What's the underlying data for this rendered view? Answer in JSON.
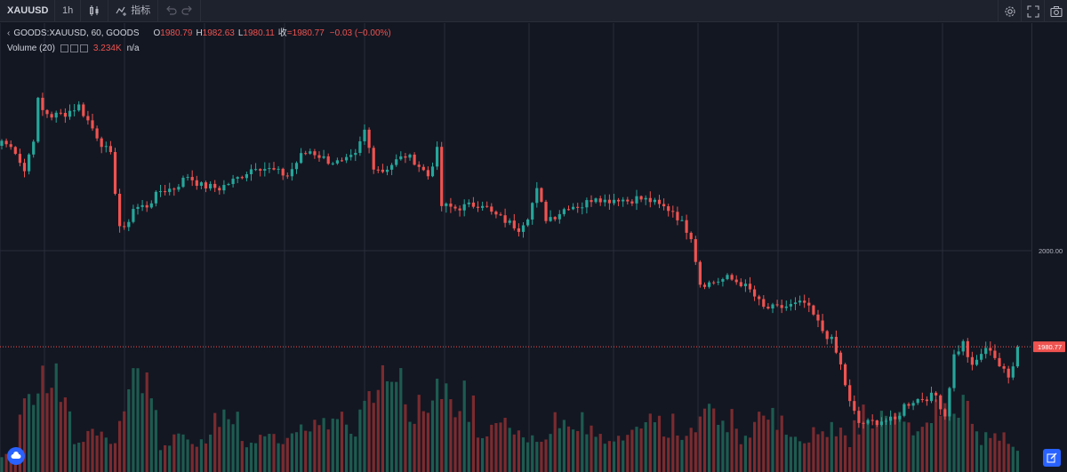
{
  "toolbar": {
    "symbol": "XAUUSD",
    "interval": "1h",
    "indicators_label": "指标",
    "icons": [
      "candles-icon",
      "indicators-icon",
      "undo-icon",
      "redo-icon",
      "settings-icon",
      "fullscreen-icon",
      "camera-icon"
    ]
  },
  "legend": {
    "symbol_line": "GOODS:XAUUSD, 60, GOODS",
    "open_key": "O",
    "open": "1980.79",
    "high_key": "H",
    "high": "1982.63",
    "low_key": "L",
    "low": "1980.11",
    "close_key": "收",
    "close": "=1980.77",
    "change": "−0.03 (−0.00%)",
    "volume_label": "Volume (20)",
    "volume_value": "3.234K",
    "volume_ma": "n/a"
  },
  "colors": {
    "up": "#26a69a",
    "down": "#ef5350",
    "up_volume": "#1d5b50",
    "down_volume": "#7a2b2f",
    "price_line": "#ef5350",
    "background": "#131722",
    "grid": "#2a2e39"
  },
  "chart_data": {
    "type": "candlestick",
    "symbol": "GOODS:XAUUSD",
    "interval": "60",
    "y_axis_labels": [
      "2000.00"
    ],
    "last_price_label": "1980.77",
    "ylim": [
      1960.5,
      2042.0
    ],
    "anchors": [
      {
        "i": 0,
        "p": 2022.0
      },
      {
        "i": 3,
        "p": 2020.0
      },
      {
        "i": 5,
        "p": 2016.0
      },
      {
        "i": 7,
        "p": 2022.5
      },
      {
        "i": 8,
        "p": 2030.0
      },
      {
        "i": 9,
        "p": 2028.0
      },
      {
        "i": 11,
        "p": 2027.0
      },
      {
        "i": 14,
        "p": 2027.5
      },
      {
        "i": 17,
        "p": 2029.0
      },
      {
        "i": 19,
        "p": 2026.0
      },
      {
        "i": 22,
        "p": 2021.5
      },
      {
        "i": 24,
        "p": 2019.0
      },
      {
        "i": 26,
        "p": 2005.0
      },
      {
        "i": 27,
        "p": 2004.0
      },
      {
        "i": 29,
        "p": 2008.5
      },
      {
        "i": 32,
        "p": 2009.0
      },
      {
        "i": 35,
        "p": 2012.0
      },
      {
        "i": 38,
        "p": 2012.5
      },
      {
        "i": 41,
        "p": 2015.0
      },
      {
        "i": 44,
        "p": 2013.0
      },
      {
        "i": 48,
        "p": 2012.5
      },
      {
        "i": 52,
        "p": 2014.5
      },
      {
        "i": 56,
        "p": 2017.0
      },
      {
        "i": 60,
        "p": 2016.0
      },
      {
        "i": 63,
        "p": 2015.0
      },
      {
        "i": 66,
        "p": 2019.0
      },
      {
        "i": 68,
        "p": 2020.0
      },
      {
        "i": 70,
        "p": 2019.0
      },
      {
        "i": 72,
        "p": 2018.0
      },
      {
        "i": 75,
        "p": 2017.5
      },
      {
        "i": 78,
        "p": 2019.0
      },
      {
        "i": 80,
        "p": 2024.0
      },
      {
        "i": 82,
        "p": 2017.0
      },
      {
        "i": 84,
        "p": 2016.0
      },
      {
        "i": 87,
        "p": 2018.0
      },
      {
        "i": 89,
        "p": 2019.0
      },
      {
        "i": 91,
        "p": 2018.0
      },
      {
        "i": 94,
        "p": 2015.0
      },
      {
        "i": 96,
        "p": 2020.0
      },
      {
        "i": 97,
        "p": 2009.0
      },
      {
        "i": 100,
        "p": 2008.5
      },
      {
        "i": 103,
        "p": 2009.0
      },
      {
        "i": 106,
        "p": 2009.5
      },
      {
        "i": 108,
        "p": 2007.5
      },
      {
        "i": 111,
        "p": 2006.0
      },
      {
        "i": 114,
        "p": 2004.5
      },
      {
        "i": 116,
        "p": 2007.0
      },
      {
        "i": 118,
        "p": 2012.0
      },
      {
        "i": 120,
        "p": 2006.5
      },
      {
        "i": 122,
        "p": 2007.0
      },
      {
        "i": 125,
        "p": 2009.0
      },
      {
        "i": 128,
        "p": 2009.0
      },
      {
        "i": 131,
        "p": 2011.0
      },
      {
        "i": 133,
        "p": 2010.0
      },
      {
        "i": 136,
        "p": 2010.5
      },
      {
        "i": 138,
        "p": 2010.0
      },
      {
        "i": 140,
        "p": 2010.5
      },
      {
        "i": 143,
        "p": 2010.0
      },
      {
        "i": 145,
        "p": 2009.0
      },
      {
        "i": 148,
        "p": 2008.0
      },
      {
        "i": 150,
        "p": 2005.5
      },
      {
        "i": 152,
        "p": 2003.0
      },
      {
        "i": 154,
        "p": 1993.5
      },
      {
        "i": 156,
        "p": 1993.5
      },
      {
        "i": 160,
        "p": 1994.5
      },
      {
        "i": 163,
        "p": 1993.5
      },
      {
        "i": 165,
        "p": 1992.0
      },
      {
        "i": 168,
        "p": 1988.5
      },
      {
        "i": 171,
        "p": 1988.5
      },
      {
        "i": 174,
        "p": 1989.0
      },
      {
        "i": 177,
        "p": 1989.5
      },
      {
        "i": 179,
        "p": 1987.0
      },
      {
        "i": 181,
        "p": 1984.0
      },
      {
        "i": 183,
        "p": 1982.0
      },
      {
        "i": 185,
        "p": 1977.0
      },
      {
        "i": 187,
        "p": 1969.5
      },
      {
        "i": 189,
        "p": 1965.5
      },
      {
        "i": 191,
        "p": 1965.5
      },
      {
        "i": 194,
        "p": 1966.0
      },
      {
        "i": 197,
        "p": 1966.0
      },
      {
        "i": 199,
        "p": 1969.0
      },
      {
        "i": 201,
        "p": 1970.0
      },
      {
        "i": 203,
        "p": 1970.5
      },
      {
        "i": 206,
        "p": 1971.0
      },
      {
        "i": 208,
        "p": 1967.0
      },
      {
        "i": 210,
        "p": 1979.0
      },
      {
        "i": 212,
        "p": 1981.5
      },
      {
        "i": 214,
        "p": 1976.5
      },
      {
        "i": 216,
        "p": 1979.5
      },
      {
        "i": 218,
        "p": 1980.5
      },
      {
        "i": 220,
        "p": 1977.0
      },
      {
        "i": 222,
        "p": 1974.5
      },
      {
        "i": 223,
        "p": 1977.5
      },
      {
        "i": 224,
        "p": 1980.77
      }
    ],
    "volume": {
      "scale_max": 100,
      "segments": [
        {
          "from": 0,
          "to": 3,
          "lo": 9,
          "hi": 18
        },
        {
          "from": 4,
          "to": 15,
          "lo": 30,
          "hi": 100
        },
        {
          "from": 16,
          "to": 25,
          "lo": 15,
          "hi": 42
        },
        {
          "from": 26,
          "to": 34,
          "lo": 25,
          "hi": 100
        },
        {
          "from": 35,
          "to": 43,
          "lo": 12,
          "hi": 38
        },
        {
          "from": 44,
          "to": 54,
          "lo": 10,
          "hi": 58
        },
        {
          "from": 55,
          "to": 62,
          "lo": 15,
          "hi": 45
        },
        {
          "from": 63,
          "to": 78,
          "lo": 12,
          "hi": 65
        },
        {
          "from": 79,
          "to": 90,
          "lo": 25,
          "hi": 100
        },
        {
          "from": 91,
          "to": 104,
          "lo": 20,
          "hi": 86
        },
        {
          "from": 105,
          "to": 118,
          "lo": 10,
          "hi": 58
        },
        {
          "from": 119,
          "to": 134,
          "lo": 12,
          "hi": 55
        },
        {
          "from": 135,
          "to": 150,
          "lo": 10,
          "hi": 55
        },
        {
          "from": 151,
          "to": 162,
          "lo": 20,
          "hi": 64
        },
        {
          "from": 163,
          "to": 176,
          "lo": 12,
          "hi": 62
        },
        {
          "from": 177,
          "to": 188,
          "lo": 10,
          "hi": 50
        },
        {
          "from": 189,
          "to": 202,
          "lo": 15,
          "hi": 66
        },
        {
          "from": 203,
          "to": 214,
          "lo": 20,
          "hi": 72
        },
        {
          "from": 215,
          "to": 224,
          "lo": 10,
          "hi": 40
        }
      ]
    }
  }
}
